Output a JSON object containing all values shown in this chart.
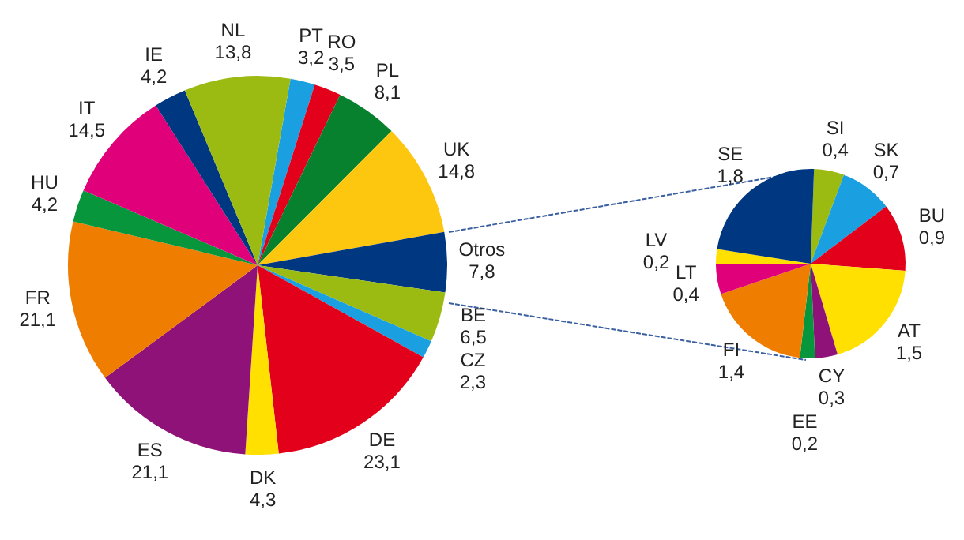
{
  "chart_data": [
    {
      "type": "pie",
      "categories": [
        "PT",
        "RO",
        "PL",
        "UK",
        "Otros",
        "BE",
        "CZ",
        "DE",
        "DK",
        "ES",
        "FR",
        "HU",
        "IT",
        "IE",
        "NL"
      ],
      "values": [
        3.2,
        3.5,
        8.1,
        14.8,
        7.8,
        6.5,
        2.3,
        23.1,
        4.3,
        21.1,
        21.1,
        4.2,
        14.5,
        4.2,
        13.8
      ],
      "value_labels": [
        "3,2",
        "3,5",
        "8,1",
        "14,8",
        "7,8",
        "6,5",
        "2,3",
        "23,1",
        "4,3",
        "21,1",
        "21,1",
        "4,2",
        "14,5",
        "4,2",
        "13,8"
      ],
      "colors": [
        "#1aa0e0",
        "#e2001a",
        "#08812f",
        "#fdc70f",
        "#003781",
        "#9bbb13",
        "#1aa0e0",
        "#e2001a",
        "#ffe000",
        "#8f1278",
        "#ef7d00",
        "#08963c",
        "#e0007a",
        "#003781",
        "#9bbb13"
      ],
      "legend": false
    },
    {
      "type": "pie",
      "categories": [
        "SI",
        "SK",
        "BU",
        "AT",
        "CY",
        "EE",
        "FI",
        "LT",
        "LV",
        "SE"
      ],
      "values": [
        0.4,
        0.7,
        0.9,
        1.5,
        0.3,
        0.2,
        1.4,
        0.4,
        0.2,
        1.8
      ],
      "value_labels": [
        "0,4",
        "0,7",
        "0,9",
        "1,5",
        "0,3",
        "0,2",
        "1,4",
        "0,4",
        "0,2",
        "1,8"
      ],
      "colors": [
        "#9bbb13",
        "#1aa0e0",
        "#e2001a",
        "#ffe000",
        "#8f1278",
        "#08963c",
        "#ef7d00",
        "#e0007a",
        "#ffe000",
        "#003781"
      ],
      "legend": false
    }
  ]
}
